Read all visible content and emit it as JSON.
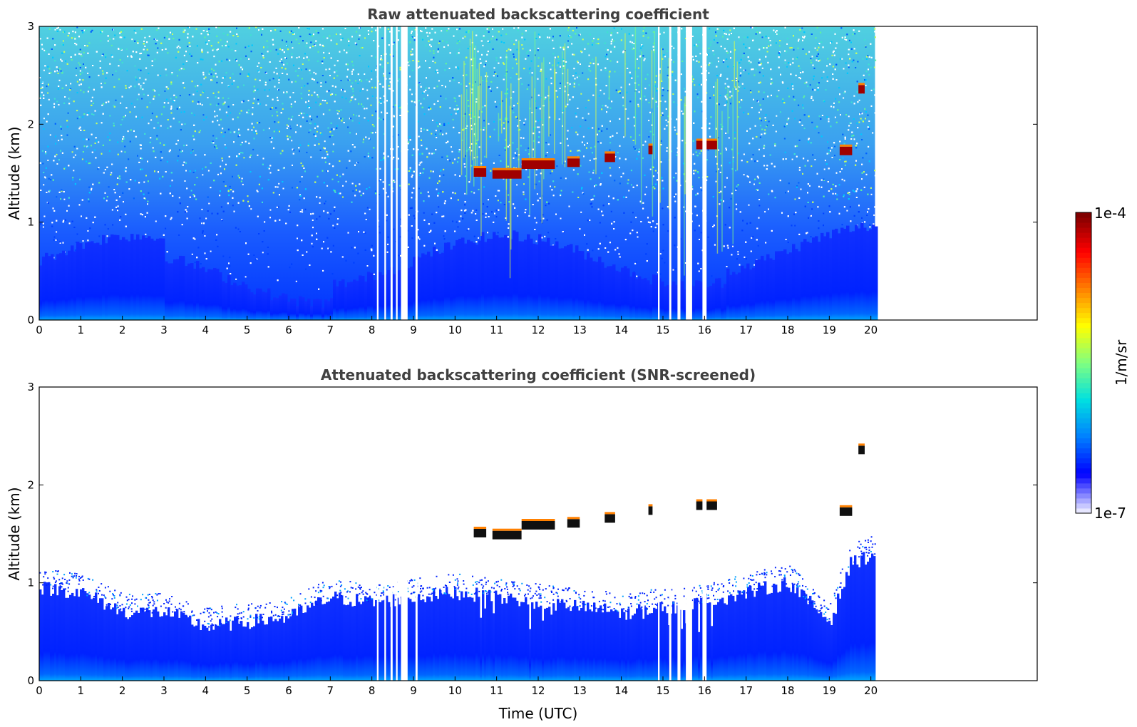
{
  "chart_data": [
    {
      "type": "heatmap",
      "title": "Raw attenuated backscattering coefficient",
      "ylabel": "Altitude (km)",
      "xlabel": "",
      "xlim": [
        0,
        24
      ],
      "ylim": [
        0,
        3
      ],
      "x_ticks": [
        0,
        1,
        2,
        3,
        4,
        5,
        6,
        7,
        8,
        9,
        10,
        11,
        12,
        13,
        14,
        15,
        16,
        17,
        18,
        19,
        20
      ],
      "y_ticks": [
        0,
        1,
        2,
        3
      ],
      "data_end_time": 20.1,
      "gaps": [
        [
          8.12,
          8.16
        ],
        [
          8.3,
          8.34
        ],
        [
          8.45,
          8.5
        ],
        [
          8.58,
          8.62
        ],
        [
          8.7,
          8.86
        ],
        [
          9.05,
          9.1
        ],
        [
          14.88,
          14.92
        ],
        [
          15.15,
          15.2
        ],
        [
          15.35,
          15.42
        ],
        [
          15.55,
          15.7
        ],
        [
          15.95,
          16.05
        ]
      ],
      "cloud_layers": [
        {
          "t0": 10.45,
          "t1": 10.75,
          "altitude_km": 1.5
        },
        {
          "t0": 10.9,
          "t1": 11.6,
          "altitude_km": 1.48
        },
        {
          "t0": 11.6,
          "t1": 12.4,
          "altitude_km": 1.58
        },
        {
          "t0": 12.7,
          "t1": 13.0,
          "altitude_km": 1.6
        },
        {
          "t0": 13.6,
          "t1": 13.85,
          "altitude_km": 1.65
        },
        {
          "t0": 14.65,
          "t1": 14.75,
          "altitude_km": 1.73
        },
        {
          "t0": 15.8,
          "t1": 16.3,
          "altitude_km": 1.78
        },
        {
          "t0": 19.25,
          "t1": 19.55,
          "altitude_km": 1.72
        },
        {
          "t0": 19.7,
          "t1": 19.85,
          "altitude_km": 2.35
        }
      ]
    },
    {
      "type": "heatmap",
      "title": "Attenuated backscattering coefficient (SNR-screened)",
      "ylabel": "Altitude (km)",
      "xlabel": "Time (UTC)",
      "xlim": [
        0,
        24
      ],
      "ylim": [
        0,
        3
      ],
      "x_ticks": [
        0,
        1,
        2,
        3,
        4,
        5,
        6,
        7,
        8,
        9,
        10,
        11,
        12,
        13,
        14,
        15,
        16,
        17,
        18,
        19,
        20
      ],
      "y_ticks": [
        0,
        1,
        2,
        3
      ],
      "data_end_time": 20.1,
      "boundary_layer_top_km": [
        [
          0,
          0.95
        ],
        [
          1,
          0.9
        ],
        [
          2,
          0.7
        ],
        [
          3,
          0.7
        ],
        [
          4,
          0.55
        ],
        [
          5,
          0.6
        ],
        [
          6,
          0.65
        ],
        [
          7,
          0.85
        ],
        [
          8,
          0.8
        ],
        [
          9,
          0.85
        ],
        [
          10,
          0.9
        ],
        [
          11,
          0.85
        ],
        [
          12,
          0.8
        ],
        [
          13,
          0.75
        ],
        [
          14,
          0.7
        ],
        [
          15,
          0.75
        ],
        [
          16,
          0.8
        ],
        [
          17,
          0.9
        ],
        [
          18,
          1.0
        ],
        [
          19,
          0.6
        ],
        [
          19.5,
          1.2
        ],
        [
          20.1,
          1.3
        ]
      ]
    }
  ],
  "colorbar": {
    "label": "1/m/sr",
    "min_label": "1e-7",
    "max_label": "1e-4",
    "colormap": [
      "#e6e6ff",
      "#0000ff",
      "#0080ff",
      "#00e0e0",
      "#80ff80",
      "#ffff00",
      "#ff8000",
      "#ff0000",
      "#800000"
    ]
  }
}
